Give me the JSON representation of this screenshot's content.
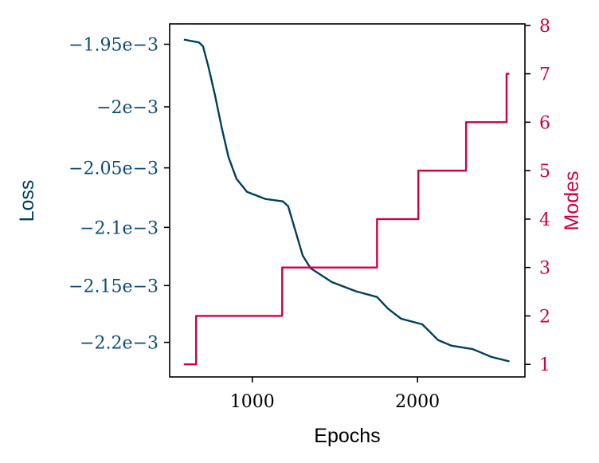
{
  "chart_data": {
    "type": "line",
    "title": "",
    "xlabel": "Epochs",
    "ylabel_left": "Loss",
    "ylabel_right": "Modes",
    "xlim": [
      500,
      2650
    ],
    "ylim_left": [
      -0.002231,
      -0.001934
    ],
    "ylim_right": [
      0.74,
      8.03
    ],
    "left_scale": "log-of-magnitude",
    "grid": false,
    "x_ticks": [
      {
        "value": 1000,
        "label": "1000"
      },
      {
        "value": 2000,
        "label": "2000"
      }
    ],
    "left_ticks": [
      {
        "value": -0.00195,
        "label": "−1.95e−3"
      },
      {
        "value": -0.002,
        "label": "−2e−3"
      },
      {
        "value": -0.00205,
        "label": "−2.05e−3"
      },
      {
        "value": -0.0021,
        "label": "−2.1e−3"
      },
      {
        "value": -0.00215,
        "label": "−2.15e−3"
      },
      {
        "value": -0.0022,
        "label": "−2.2e−3"
      }
    ],
    "right_ticks": [
      {
        "value": 1,
        "label": "1"
      },
      {
        "value": 2,
        "label": "2"
      },
      {
        "value": 3,
        "label": "3"
      },
      {
        "value": 4,
        "label": "4"
      },
      {
        "value": 5,
        "label": "5"
      },
      {
        "value": 6,
        "label": "6"
      },
      {
        "value": 7,
        "label": "7"
      },
      {
        "value": 8,
        "label": "8"
      }
    ],
    "colors": {
      "loss": "#003f5c",
      "loss_ticks": "#0d4a77",
      "modes": "#d1003d",
      "axes": "#000000"
    },
    "series": [
      {
        "axis": "left",
        "x": [
          586,
          678,
          702,
          734,
          775,
          815,
          856,
          904,
          968,
          1080,
          1185,
          1217,
          1257,
          1305,
          1353,
          1482,
          1627,
          1755,
          1820,
          1900,
          2029,
          2125,
          2206,
          2334,
          2447,
          2556
        ],
        "y": [
          -0.0019463,
          -0.0019486,
          -0.0019517,
          -0.0019675,
          -0.001991,
          -0.002017,
          -0.002041,
          -0.002059,
          -0.00207,
          -0.002076,
          -0.002078,
          -0.002082,
          -0.002101,
          -0.002124,
          -0.002135,
          -0.002147,
          -0.002155,
          -0.00216,
          -0.00217,
          -0.002179,
          -0.002184,
          -0.002198,
          -0.002203,
          -0.002206,
          -0.002213,
          -0.002217
        ]
      },
      {
        "axis": "right",
        "step": true,
        "x": [
          586,
          660,
          1181,
          1755,
          2005,
          2294,
          2539,
          2556
        ],
        "y": [
          1,
          2,
          3,
          4,
          5,
          6,
          7,
          7
        ]
      }
    ]
  }
}
